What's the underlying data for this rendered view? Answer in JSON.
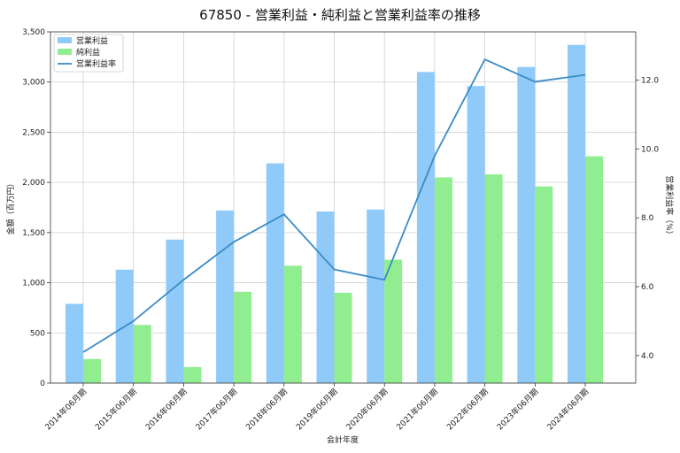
{
  "chart_data": {
    "type": "bar",
    "title": "67850 - 営業利益・純利益と営業利益率の推移",
    "xlabel": "会計年度",
    "ylabel": "金額（百万円）",
    "y2label": "営業利益率（%）",
    "categories": [
      "2014年06月期",
      "2015年06月期",
      "2016年06月期",
      "2017年06月期",
      "2018年06月期",
      "2019年06月期",
      "2020年06月期",
      "2021年06月期",
      "2022年06月期",
      "2023年06月期",
      "2024年06月期"
    ],
    "series": [
      {
        "name": "営業利益",
        "kind": "bar",
        "axis": "left",
        "color": "#90caf9",
        "values": [
          790,
          1130,
          1430,
          1720,
          2190,
          1710,
          1730,
          3100,
          2960,
          3150,
          3370
        ]
      },
      {
        "name": "純利益",
        "kind": "bar",
        "axis": "left",
        "color": "#90ee90",
        "values": [
          240,
          580,
          160,
          910,
          1170,
          900,
          1230,
          2050,
          2080,
          1960,
          2260
        ]
      },
      {
        "name": "営業利益率",
        "kind": "line",
        "axis": "right",
        "color": "#3a8bc4",
        "values": [
          4.1,
          5.0,
          6.2,
          7.3,
          8.1,
          6.5,
          6.2,
          9.8,
          12.6,
          11.95,
          12.15
        ]
      }
    ],
    "ylim": [
      0,
      3500
    ],
    "y_ticks": [
      0,
      500,
      1000,
      1500,
      2000,
      2500,
      3000,
      3500
    ],
    "y_tick_labels": [
      "0",
      "500",
      "1,000",
      "1,500",
      "2,000",
      "2,500",
      "3,000",
      "3,500"
    ],
    "y2lim": [
      3.2,
      13.4
    ],
    "y2_ticks": [
      4,
      6,
      8,
      10,
      12
    ],
    "y2_tick_labels": [
      "4.0",
      "6.0",
      "8.0",
      "10.0",
      "12.0"
    ],
    "grid": true,
    "legend_position": "top-left"
  }
}
